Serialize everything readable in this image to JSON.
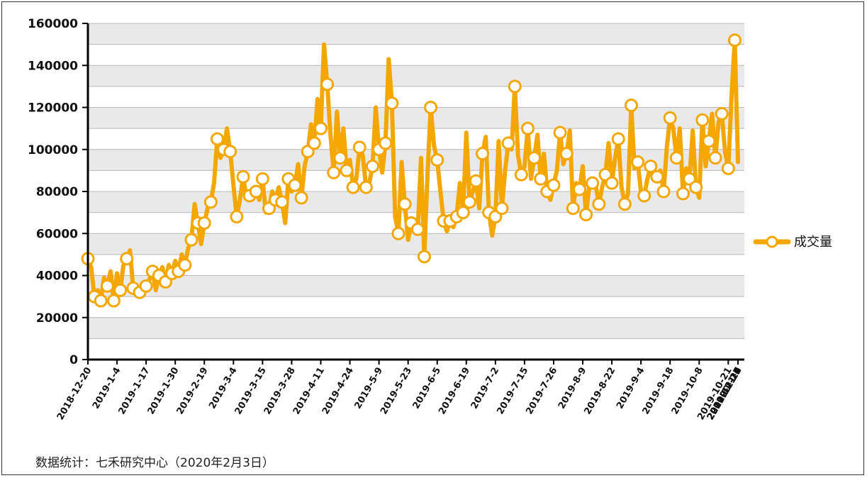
{
  "colors": {
    "series": "#f4a700",
    "marker_fill": "#ffffff",
    "band": "#e9e9e9",
    "grid": "#b8b8b8"
  },
  "source_note": "数据统计：七禾研究中心（2020年2月3日）",
  "chart_data": {
    "type": "line",
    "title": "",
    "xlabel": "",
    "ylabel": "",
    "ylim": [
      0,
      160000
    ],
    "yticks": [
      0,
      20000,
      40000,
      60000,
      80000,
      100000,
      120000,
      140000,
      160000
    ],
    "grid": true,
    "legend_position": "right",
    "xtick_labels": [
      "2018-12-20",
      "2019-1-4",
      "2019-1-17",
      "2019-1-30",
      "2019-2-19",
      "2019-3-4",
      "2019-3-15",
      "2019-3-28",
      "2019-4-11",
      "2019-4-24",
      "2019-5-9",
      "2019-5-23",
      "2019-6-5",
      "2019-6-19",
      "2019-7-2",
      "2019-7-15",
      "2019-7-26",
      "2019-8-9",
      "2019-8-22",
      "2019-9-4",
      "2019-9-18",
      "2019-10-8",
      "2019-10-21",
      "2019-11-1",
      "2019-11-14",
      "2019-11-27",
      "2019-12-10",
      "2019-12-23",
      "2020-1-6",
      "2020-1-17"
    ],
    "series": [
      {
        "name": "成交量",
        "values": [
          48000,
          44000,
          30000,
          33000,
          28000,
          39000,
          35000,
          42000,
          28000,
          41000,
          33000,
          45000,
          48000,
          52000,
          34000,
          31000,
          32000,
          36000,
          35000,
          38000,
          42000,
          33000,
          40000,
          44000,
          37000,
          45000,
          41000,
          47000,
          42000,
          50000,
          45000,
          53000,
          57000,
          74000,
          65000,
          55000,
          65000,
          72000,
          75000,
          84000,
          105000,
          96000,
          100000,
          110000,
          99000,
          83000,
          68000,
          76000,
          87000,
          77000,
          78000,
          77000,
          80000,
          76000,
          86000,
          70000,
          72000,
          80000,
          76000,
          82000,
          75000,
          65000,
          86000,
          80000,
          83000,
          93000,
          77000,
          92000,
          99000,
          112000,
          103000,
          124000,
          110000,
          150000,
          131000,
          107000,
          89000,
          118000,
          96000,
          110000,
          90000,
          95000,
          82000,
          86000,
          101000,
          97000,
          82000,
          84000,
          92000,
          120000,
          100000,
          89000,
          103000,
          143000,
          122000,
          68000,
          60000,
          94000,
          74000,
          57000,
          65000,
          66000,
          62000,
          96000,
          49000,
          88000,
          120000,
          102000,
          95000,
          80000,
          66000,
          61000,
          66000,
          63000,
          68000,
          84000,
          70000,
          108000,
          75000,
          80000,
          85000,
          72000,
          98000,
          106000,
          70000,
          59000,
          68000,
          104000,
          72000,
          90000,
          103000,
          100000,
          130000,
          97000,
          88000,
          92000,
          110000,
          86000,
          96000,
          107000,
          86000,
          98000,
          80000,
          76000,
          83000,
          90000,
          108000,
          93000,
          98000,
          109000,
          72000,
          84000,
          81000,
          92000,
          69000,
          82000,
          84000,
          83000,
          74000,
          82000,
          88000,
          103000,
          84000,
          96000,
          105000,
          82000,
          74000,
          79000,
          121000,
          91000,
          94000,
          80000,
          78000,
          86000,
          92000,
          88000,
          87000,
          90000,
          80000,
          101000,
          115000,
          110000,
          96000,
          110000,
          79000,
          91000,
          86000,
          109000,
          82000,
          77000,
          114000,
          92000,
          104000,
          117000,
          96000,
          113000,
          117000,
          99000,
          91000,
          125000,
          152000,
          94000
        ]
      }
    ]
  }
}
